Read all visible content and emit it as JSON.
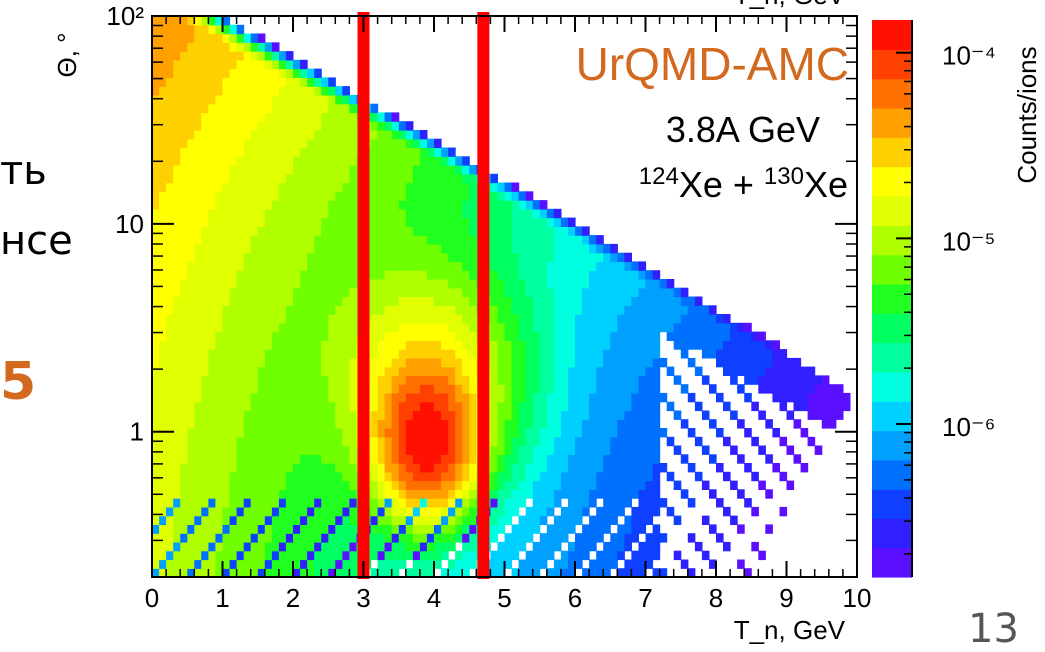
{
  "slide": {
    "side_fragment_1": "ть",
    "side_fragment_2": "нсе",
    "side_fragment_3": "5",
    "page_number": "13"
  },
  "chart_data": {
    "type": "heatmap",
    "title": "",
    "top_axis_label": "T_n, GeV",
    "xlabel": "T_n, GeV",
    "ylabel": "Θ, °",
    "zlabel": "Counts/ions",
    "xlim": [
      0,
      10
    ],
    "ylim": [
      0.2,
      100
    ],
    "y_scale": "log",
    "z_scale": "log",
    "zlim": [
      1.5e-07,
      0.00015
    ],
    "x_ticks": [
      "0",
      "1",
      "2",
      "3",
      "4",
      "5",
      "6",
      "7",
      "8",
      "9",
      "10"
    ],
    "y_ticks": [
      {
        "value": 1,
        "label": "1"
      },
      {
        "value": 10,
        "label": "10"
      },
      {
        "value": 100,
        "label": "10²"
      }
    ],
    "z_ticks": [
      {
        "value": 0.0001,
        "label": "10⁻⁴"
      },
      {
        "value": 1e-05,
        "label": "10⁻⁵"
      },
      {
        "value": 1e-06,
        "label": "10⁻⁶"
      }
    ],
    "annotations": {
      "model": "UrQMD-AMC",
      "model_color": "#d2691e",
      "energy": "3.8A GeV",
      "reaction_a_mass": "124",
      "reaction_a_elem": "Xe",
      "reaction_plus": " + ",
      "reaction_b_mass": "130",
      "reaction_b_elem": "Xe"
    },
    "cut_lines": [
      {
        "x": 3.0,
        "color": "#ff0000"
      },
      {
        "x": 4.7,
        "color": "#ff0000"
      }
    ],
    "features": {
      "peak_x": 3.9,
      "peak_y": 0.9,
      "ridge": "diagonal band from small T_n / large angle to T_n≈9, Θ≈3°"
    },
    "palette": [
      "#5a10ff",
      "#3020ff",
      "#1040ff",
      "#0070ff",
      "#00a0ff",
      "#00d0ff",
      "#00ffe0",
      "#00ffa0",
      "#00ff60",
      "#20ff20",
      "#70ff00",
      "#b0ff00",
      "#e0ff00",
      "#ffff00",
      "#ffd000",
      "#ffa000",
      "#ff7000",
      "#ff4000",
      "#ff1000"
    ]
  }
}
